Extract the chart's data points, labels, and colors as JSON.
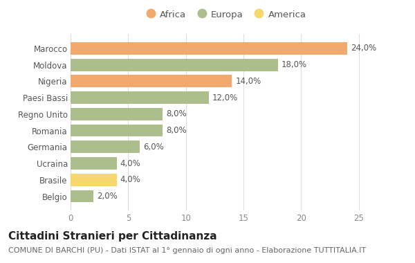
{
  "countries": [
    "Marocco",
    "Moldova",
    "Nigeria",
    "Paesi Bassi",
    "Regno Unito",
    "Romania",
    "Germania",
    "Ucraina",
    "Brasile",
    "Belgio"
  ],
  "values": [
    24.0,
    18.0,
    14.0,
    12.0,
    8.0,
    8.0,
    6.0,
    4.0,
    4.0,
    2.0
  ],
  "continents": [
    "Africa",
    "Europa",
    "Africa",
    "Europa",
    "Europa",
    "Europa",
    "Europa",
    "Europa",
    "America",
    "Europa"
  ],
  "colors": {
    "Africa": "#F2A96E",
    "Europa": "#ABBE8C",
    "America": "#F5D76E"
  },
  "legend_order": [
    "Africa",
    "Europa",
    "America"
  ],
  "title": "Cittadini Stranieri per Cittadinanza",
  "subtitle": "COMUNE DI BARCHI (PU) - Dati ISTAT al 1° gennaio di ogni anno - Elaborazione TUTTITALIA.IT",
  "xlim": [
    0,
    27
  ],
  "xticks": [
    0,
    5,
    10,
    15,
    20,
    25
  ],
  "bg_color": "#FFFFFF",
  "grid_color": "#DDDDDD",
  "bar_label_color": "#555555",
  "title_fontsize": 11,
  "subtitle_fontsize": 8,
  "tick_fontsize": 8.5,
  "label_fontsize": 8.5,
  "bar_height": 0.75
}
